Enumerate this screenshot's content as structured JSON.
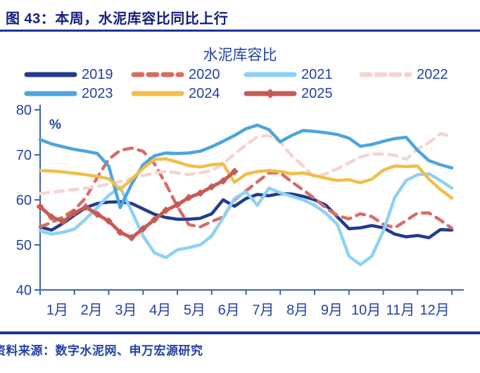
{
  "figure": {
    "title": "图 43：本周，水泥库容比同比上行"
  },
  "source": {
    "text": "资料来源：数字水泥网、申万宏源研究"
  },
  "colors": {
    "title_navy": "#141E7E",
    "rule_blue": "#1C339B",
    "text_blue": "#2342A4",
    "axis_blue": "#3B66B0"
  },
  "chart_data": {
    "type": "line",
    "title": "水泥库容比",
    "y_unit": "%",
    "ylabel": "",
    "xlabel": "",
    "ylim": [
      40,
      80
    ],
    "y_ticks": [
      40,
      50,
      60,
      70,
      80
    ],
    "x_tick_labels": [
      "1月",
      "2月",
      "3月",
      "4月",
      "5月",
      "6月",
      "7月",
      "8月",
      "9月",
      "10月",
      "11月",
      "12月"
    ],
    "x_range_months": [
      0,
      12
    ],
    "points_per_month": 3,
    "grid": false,
    "legend_position": "top",
    "series": [
      {
        "name": "2019",
        "color": "#203C8E",
        "style": "solid",
        "width": 4.5,
        "values": [
          54.0,
          53.3,
          54.8,
          56.6,
          58.3,
          59.2,
          59.5,
          59.6,
          59.2,
          58.0,
          56.8,
          56.1,
          55.7,
          55.7,
          55.9,
          56.9,
          60.0,
          58.6,
          60.3,
          61.2,
          60.9,
          61.4,
          61.3,
          60.8,
          60.0,
          58.8,
          56.2,
          53.6,
          53.8,
          54.3,
          53.8,
          52.4,
          51.8,
          52.1,
          51.6,
          53.4,
          53.3
        ]
      },
      {
        "name": "2020",
        "color": "#D76C66",
        "style": "dashed",
        "width": 4.5,
        "values": [
          54.0,
          55.0,
          56.2,
          57.8,
          60.5,
          65.0,
          69.0,
          71.0,
          71.5,
          70.8,
          68.0,
          63.5,
          58.5,
          54.5,
          54.0,
          55.2,
          56.2,
          60.0,
          62.0,
          64.0,
          66.0,
          66.0,
          64.0,
          62.2,
          60.3,
          58.2,
          56.5,
          55.8,
          56.9,
          56.3,
          54.6,
          53.8,
          55.4,
          57.1,
          57.1,
          55.5,
          53.7
        ]
      },
      {
        "name": "2021",
        "color": "#8DD1F5",
        "style": "solid",
        "width": 4.5,
        "values": [
          53.1,
          52.4,
          52.8,
          53.5,
          55.8,
          58.3,
          61.0,
          62.8,
          57.5,
          52.0,
          48.2,
          47.2,
          48.9,
          49.4,
          50.0,
          52.0,
          56.0,
          60.3,
          61.8,
          58.8,
          62.6,
          61.6,
          60.8,
          60.0,
          58.8,
          57.0,
          54.5,
          47.5,
          45.6,
          47.5,
          53.0,
          60.5,
          64.3,
          65.6,
          65.8,
          64.3,
          62.6
        ]
      },
      {
        "name": "2022",
        "color": "#F4D4D0",
        "style": "dashed",
        "width": 4.5,
        "values": [
          61.4,
          61.7,
          62.0,
          62.3,
          62.6,
          63.0,
          63.5,
          64.1,
          64.8,
          65.4,
          66.0,
          66.3,
          66.0,
          65.6,
          66.0,
          66.5,
          68.0,
          70.2,
          72.2,
          74.0,
          74.3,
          72.8,
          69.8,
          67.5,
          65.0,
          65.8,
          66.9,
          68.2,
          69.5,
          70.2,
          70.2,
          69.9,
          69.0,
          71.3,
          72.7,
          74.7,
          74.1
        ]
      },
      {
        "name": "2023",
        "color": "#4DA4DC",
        "style": "solid",
        "width": 4.5,
        "values": [
          73.4,
          72.4,
          71.8,
          71.2,
          70.8,
          70.3,
          67.5,
          58.3,
          63.5,
          67.8,
          69.8,
          70.4,
          70.3,
          70.4,
          70.8,
          71.8,
          73.0,
          74.3,
          75.8,
          76.6,
          75.6,
          72.9,
          74.3,
          75.4,
          75.2,
          74.9,
          74.5,
          73.7,
          71.9,
          72.3,
          73.0,
          73.6,
          73.9,
          71.0,
          68.7,
          67.8,
          67.1
        ]
      },
      {
        "name": "2024",
        "color": "#F1BE48",
        "style": "solid",
        "width": 4.5,
        "values": [
          66.5,
          66.4,
          66.2,
          65.9,
          65.6,
          65.2,
          64.7,
          62.3,
          64.6,
          67.0,
          69.0,
          69.1,
          68.4,
          67.6,
          67.3,
          67.8,
          68.0,
          63.9,
          65.7,
          66.3,
          66.5,
          66.3,
          65.8,
          66.0,
          65.4,
          64.8,
          64.3,
          64.5,
          63.8,
          64.6,
          66.6,
          67.5,
          67.4,
          67.5,
          64.6,
          62.3,
          60.4
        ]
      },
      {
        "name": "2025",
        "color": "#C65B55",
        "style": "solid",
        "width": 5,
        "marker": "diamond",
        "values": [
          58.5,
          56.2,
          55.2,
          57.1,
          58.4,
          56.8,
          55.3,
          52.8,
          51.6,
          53.6,
          55.6,
          57.7,
          58.9,
          60.5,
          61.5,
          62.9,
          64.2,
          66.3
        ]
      }
    ]
  }
}
